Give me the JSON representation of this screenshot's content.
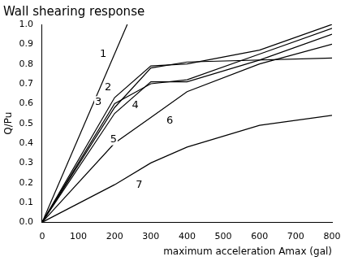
{
  "chart_data": {
    "type": "line",
    "title": "Wall shearing response",
    "x_label": "maximum acceleration Amax (gal)",
    "y_label": "Q/Pu",
    "xlim": [
      0,
      800
    ],
    "xticks": [
      0,
      100,
      200,
      300,
      400,
      500,
      600,
      700,
      800
    ],
    "ylim": [
      0,
      1.0
    ],
    "yticks": [
      {
        "value": 0,
        "label": "0.0"
      },
      0.1,
      0.2,
      0.3,
      0.4,
      0.5,
      0.6,
      0.7,
      0.8,
      0.9,
      {
        "value": 1.0,
        "label": "1.0"
      }
    ],
    "grid": false,
    "series": [
      {
        "name": "1",
        "color": "#000000",
        "x": [
          0,
          235
        ],
        "values": [
          0,
          1.0
        ]
      },
      {
        "name": "2",
        "color": "#000000",
        "x": [
          0,
          200,
          300,
          400,
          600,
          800
        ],
        "values": [
          0,
          0.63,
          0.79,
          0.8,
          0.87,
          1.0
        ]
      },
      {
        "name": "3",
        "color": "#000000",
        "x": [
          0,
          200,
          300,
          400,
          600,
          800
        ],
        "values": [
          0,
          0.6,
          0.7,
          0.72,
          0.85,
          0.98
        ]
      },
      {
        "name": "4",
        "color": "#000000",
        "x": [
          0,
          200,
          300,
          400,
          800
        ],
        "values": [
          0,
          0.58,
          0.78,
          0.81,
          0.83
        ]
      },
      {
        "name": "5",
        "color": "#000000",
        "x": [
          0,
          200,
          300,
          400,
          600,
          800
        ],
        "values": [
          0,
          0.55,
          0.71,
          0.71,
          0.82,
          0.95
        ]
      },
      {
        "name": "6",
        "color": "#000000",
        "x": [
          0,
          200,
          300,
          400,
          600,
          800
        ],
        "values": [
          0,
          0.4,
          0.53,
          0.66,
          0.8,
          0.9
        ]
      },
      {
        "name": "7",
        "color": "#000000",
        "x": [
          0,
          200,
          300,
          400,
          600,
          800
        ],
        "values": [
          0,
          0.19,
          0.3,
          0.38,
          0.49,
          0.54
        ]
      }
    ]
  }
}
